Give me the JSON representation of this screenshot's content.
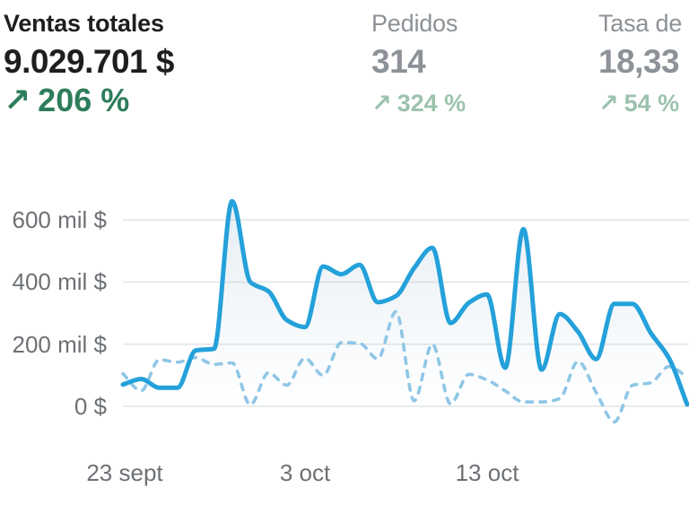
{
  "metrics": [
    {
      "title": "Ventas totales",
      "value": "9.029.701 $",
      "arrow": "↗",
      "delta": "206 %"
    },
    {
      "title": "Pedidos",
      "value": "314",
      "arrow": "↗",
      "delta": "324 %"
    },
    {
      "title": "Tasa de",
      "value": "18,33",
      "arrow": "↗",
      "delta": "54 %"
    }
  ],
  "colors": {
    "text_dark": "#1c1e20",
    "text_gray": "#8c9196",
    "axis_gray": "#6d7175",
    "gridline": "#e4e5e7",
    "delta_green": "#2e7d5a",
    "delta_green_muted": "#9cc2ae",
    "line_current": "#24a1da",
    "line_previous": "#8fc6e6",
    "area_fill": "#8cb0c9"
  },
  "chart_data": {
    "type": "line",
    "title": "Ventas totales",
    "xlabel": "",
    "ylabel": "",
    "x": [
      "23 sept",
      "24 sept",
      "25 sept",
      "26 sept",
      "27 sept",
      "28 sept",
      "29 sept",
      "30 sept",
      "1 oct",
      "2 oct",
      "3 oct",
      "4 oct",
      "5 oct",
      "6 oct",
      "7 oct",
      "8 oct",
      "9 oct",
      "10 oct",
      "11 oct",
      "12 oct",
      "13 oct",
      "14 oct",
      "15 oct",
      "16 oct",
      "17 oct",
      "18 oct",
      "19 oct",
      "20 oct",
      "21 oct",
      "22 oct",
      "23 oct",
      "24 oct"
    ],
    "x_tick_labels": [
      "23 sept",
      "3 oct",
      "13 oct"
    ],
    "y_tick_labels": [
      "600 mil $",
      "400 mil $",
      "200 mil $",
      "0 $"
    ],
    "y_ticks": [
      600000,
      400000,
      200000,
      0
    ],
    "ylim": [
      -70000,
      700000
    ],
    "grid": true,
    "legend": false,
    "series": [
      {
        "name": "current_period",
        "style": "solid",
        "color": "#24a1da",
        "values": [
          70000,
          88000,
          60000,
          60000,
          180000,
          185000,
          660000,
          400000,
          370000,
          278000,
          255000,
          450000,
          425000,
          455000,
          335000,
          355000,
          445000,
          510000,
          268000,
          333000,
          360000,
          124000,
          570000,
          118000,
          297000,
          240000,
          152000,
          330000,
          330000,
          236000,
          155000,
          6000
        ]
      },
      {
        "name": "previous_period",
        "style": "dashed",
        "color": "#8fc6e6",
        "values": [
          105000,
          50000,
          150000,
          142000,
          157000,
          135000,
          140000,
          5000,
          108000,
          68000,
          155000,
          100000,
          205000,
          203000,
          153000,
          305000,
          18000,
          200000,
          8000,
          103000,
          85000,
          50000,
          14000,
          14000,
          25000,
          145000,
          45000,
          -50000,
          68000,
          76000,
          128000,
          95000
        ]
      }
    ]
  }
}
